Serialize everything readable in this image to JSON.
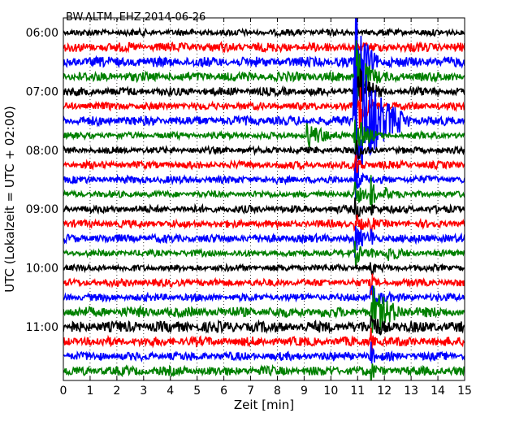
{
  "chart_data": {
    "type": "line",
    "title": "BW.ALTM..EHZ 2014-06-26",
    "xlabel": "Zeit  [min]",
    "ylabel": "UTC (Lokalzeit = UTC + 02:00)",
    "xlim": [
      0,
      15
    ],
    "x_ticks": [
      "0",
      "1",
      "2",
      "3",
      "4",
      "5",
      "6",
      "7",
      "8",
      "9",
      "10",
      "11",
      "12",
      "13",
      "14",
      "15"
    ],
    "y_ticks": [
      {
        "label": "06:00",
        "row": 0
      },
      {
        "label": "07:00",
        "row": 4
      },
      {
        "label": "08:00",
        "row": 8
      },
      {
        "label": "09:00",
        "row": 12
      },
      {
        "label": "10:00",
        "row": 16
      },
      {
        "label": "11:00",
        "row": 20
      }
    ],
    "row_interval_min": 15,
    "start_time": "06:00",
    "grid": "vertical dotted",
    "trace_colors": [
      "#000000",
      "#ff0000",
      "#0000ff",
      "#008000"
    ],
    "rows": [
      {
        "start": "06:00",
        "color": "#000000",
        "base": 0.35,
        "events": []
      },
      {
        "start": "06:15",
        "color": "#ff0000",
        "base": 0.5,
        "events": []
      },
      {
        "start": "06:30",
        "color": "#0000ff",
        "base": 0.55,
        "events": [
          {
            "t": 10.9,
            "amp": 9.0,
            "dur": 0.3
          }
        ]
      },
      {
        "start": "06:45",
        "color": "#008000",
        "base": 0.5,
        "events": [
          {
            "t": 10.95,
            "amp": 5.0,
            "dur": 0.3
          }
        ]
      },
      {
        "start": "07:00",
        "color": "#000000",
        "base": 0.45,
        "events": [
          {
            "t": 11.0,
            "amp": 4.0,
            "dur": 0.3
          }
        ]
      },
      {
        "start": "07:15",
        "color": "#ff0000",
        "base": 0.4,
        "events": [
          {
            "t": 11.05,
            "amp": 2.8,
            "dur": 0.3
          }
        ]
      },
      {
        "start": "07:30",
        "color": "#0000ff",
        "base": 0.5,
        "events": [
          {
            "t": 10.85,
            "amp": 12.0,
            "dur": 0.7
          }
        ]
      },
      {
        "start": "07:45",
        "color": "#008000",
        "base": 0.35,
        "events": [
          {
            "t": 9.1,
            "amp": 1.6,
            "dur": 0.5
          },
          {
            "t": 10.9,
            "amp": 3.0,
            "dur": 0.3
          }
        ]
      },
      {
        "start": "08:00",
        "color": "#000000",
        "base": 0.35,
        "events": [
          {
            "t": 10.9,
            "amp": 1.8,
            "dur": 0.2
          }
        ]
      },
      {
        "start": "08:15",
        "color": "#ff0000",
        "base": 0.4,
        "events": [
          {
            "t": 10.9,
            "amp": 1.6,
            "dur": 0.2
          }
        ]
      },
      {
        "start": "08:30",
        "color": "#0000ff",
        "base": 0.4,
        "events": [
          {
            "t": 10.9,
            "amp": 1.5,
            "dur": 0.2
          }
        ]
      },
      {
        "start": "08:45",
        "color": "#008000",
        "base": 0.35,
        "events": [
          {
            "t": 10.9,
            "amp": 1.4,
            "dur": 0.2
          },
          {
            "t": 11.5,
            "amp": 4.0,
            "dur": 0.08
          },
          {
            "t": 12.0,
            "amp": 1.0,
            "dur": 0.2
          }
        ]
      },
      {
        "start": "09:00",
        "color": "#000000",
        "base": 0.4,
        "events": [
          {
            "t": 10.9,
            "amp": 1.4,
            "dur": 0.2
          },
          {
            "t": 11.5,
            "amp": 1.4,
            "dur": 0.08
          }
        ]
      },
      {
        "start": "09:15",
        "color": "#ff0000",
        "base": 0.4,
        "events": [
          {
            "t": 10.9,
            "amp": 1.4,
            "dur": 0.2
          },
          {
            "t": 11.5,
            "amp": 1.4,
            "dur": 0.08
          }
        ]
      },
      {
        "start": "09:30",
        "color": "#0000ff",
        "base": 0.45,
        "events": [
          {
            "t": 10.9,
            "amp": 2.2,
            "dur": 0.2
          },
          {
            "t": 11.5,
            "amp": 1.4,
            "dur": 0.08
          }
        ]
      },
      {
        "start": "09:45",
        "color": "#008000",
        "base": 0.35,
        "events": [
          {
            "t": 10.9,
            "amp": 1.6,
            "dur": 0.2
          },
          {
            "t": 11.5,
            "amp": 1.6,
            "dur": 0.08
          },
          {
            "t": 12.1,
            "amp": 1.0,
            "dur": 0.3
          }
        ]
      },
      {
        "start": "10:00",
        "color": "#000000",
        "base": 0.35,
        "events": [
          {
            "t": 11.5,
            "amp": 1.4,
            "dur": 0.08
          }
        ]
      },
      {
        "start": "10:15",
        "color": "#ff0000",
        "base": 0.4,
        "events": [
          {
            "t": 11.5,
            "amp": 1.4,
            "dur": 0.08
          }
        ]
      },
      {
        "start": "10:30",
        "color": "#0000ff",
        "base": 0.4,
        "events": [
          {
            "t": 11.5,
            "amp": 1.6,
            "dur": 0.3
          }
        ]
      },
      {
        "start": "10:45",
        "color": "#008000",
        "base": 0.55,
        "events": [
          {
            "t": 11.55,
            "amp": 3.2,
            "dur": 0.5
          }
        ]
      },
      {
        "start": "11:00",
        "color": "#000000",
        "base": 0.6,
        "events": [
          {
            "t": 11.5,
            "amp": 1.6,
            "dur": 0.3
          }
        ]
      },
      {
        "start": "11:15",
        "color": "#ff0000",
        "base": 0.5,
        "events": [
          {
            "t": 11.5,
            "amp": 1.6,
            "dur": 0.08
          }
        ]
      },
      {
        "start": "11:30",
        "color": "#0000ff",
        "base": 0.45,
        "events": [
          {
            "t": 11.5,
            "amp": 1.6,
            "dur": 0.08
          }
        ]
      },
      {
        "start": "11:45",
        "color": "#008000",
        "base": 0.5,
        "events": [
          {
            "t": 11.5,
            "amp": 1.6,
            "dur": 0.08
          }
        ]
      }
    ]
  }
}
